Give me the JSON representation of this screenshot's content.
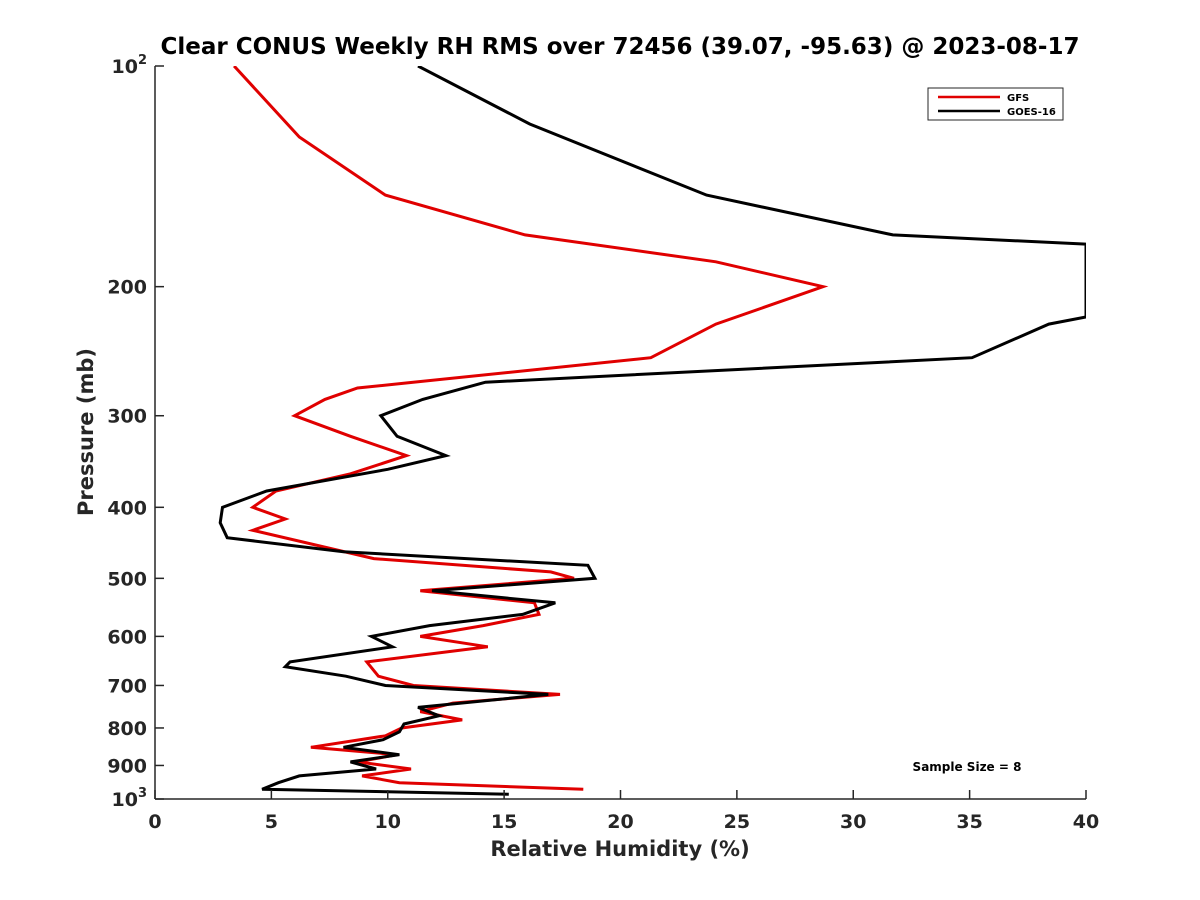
{
  "chart_data": {
    "type": "line",
    "title": "Clear CONUS Weekly RH RMS over 72456 (39.07, -95.63) @ 2023-08-17",
    "xlabel": "Relative Humidity (%)",
    "ylabel": "Pressure (mb)",
    "xlim": [
      0,
      40
    ],
    "ylim": [
      100,
      1000
    ],
    "yscale": "log",
    "y_reversed": true,
    "x_ticks": [
      0,
      5,
      10,
      15,
      20,
      25,
      30,
      35,
      40
    ],
    "x_tick_labels": [
      "0",
      "5",
      "10",
      "15",
      "20",
      "25",
      "30",
      "35",
      "40"
    ],
    "y_ticks": [
      100,
      200,
      300,
      400,
      500,
      600,
      700,
      800,
      900,
      1000
    ],
    "y_tick_labels": [
      {
        "base": "10",
        "exp": "2"
      },
      {
        "base": "200",
        "exp": ""
      },
      {
        "base": "300",
        "exp": ""
      },
      {
        "base": "400",
        "exp": ""
      },
      {
        "base": "500",
        "exp": ""
      },
      {
        "base": "600",
        "exp": ""
      },
      {
        "base": "700",
        "exp": ""
      },
      {
        "base": "800",
        "exp": ""
      },
      {
        "base": "900",
        "exp": ""
      },
      {
        "base": "10",
        "exp": "3"
      }
    ],
    "legend_position": "top-right",
    "annotation": "Sample Size = 8",
    "series": [
      {
        "name": "GFS",
        "color": "#e00000",
        "points": [
          [
            3.4,
            100
          ],
          [
            6.2,
            125
          ],
          [
            9.9,
            150
          ],
          [
            15.9,
            170
          ],
          [
            24.1,
            185
          ],
          [
            28.7,
            200
          ],
          [
            24.1,
            225
          ],
          [
            21.3,
            250
          ],
          [
            8.7,
            275
          ],
          [
            7.3,
            285
          ],
          [
            6.0,
            300
          ],
          [
            8.4,
            320
          ],
          [
            10.8,
            340
          ],
          [
            8.4,
            360
          ],
          [
            5.2,
            380
          ],
          [
            4.2,
            400
          ],
          [
            5.6,
            415
          ],
          [
            4.2,
            430
          ],
          [
            9.4,
            470
          ],
          [
            17.0,
            490
          ],
          [
            18.0,
            500
          ],
          [
            11.4,
            520
          ],
          [
            16.3,
            540
          ],
          [
            16.5,
            560
          ],
          [
            14.1,
            580
          ],
          [
            11.4,
            600
          ],
          [
            14.3,
            620
          ],
          [
            9.1,
            650
          ],
          [
            9.6,
            680
          ],
          [
            11.1,
            700
          ],
          [
            17.4,
            720
          ],
          [
            12.8,
            740
          ],
          [
            11.4,
            760
          ],
          [
            13.2,
            780
          ],
          [
            10.6,
            800
          ],
          [
            9.9,
            820
          ],
          [
            6.7,
            850
          ],
          [
            10.4,
            870
          ],
          [
            8.7,
            890
          ],
          [
            11.0,
            910
          ],
          [
            8.9,
            930
          ],
          [
            10.5,
            950
          ],
          [
            18.4,
            970
          ]
        ]
      },
      {
        "name": "GOES-16",
        "color": "#000000",
        "points": [
          [
            11.3,
            100
          ],
          [
            16.1,
            120
          ],
          [
            23.7,
            150
          ],
          [
            31.7,
            170
          ],
          [
            40.0,
            175
          ],
          [
            40.0,
            220
          ],
          [
            38.4,
            225
          ],
          [
            35.1,
            250
          ],
          [
            14.2,
            270
          ],
          [
            11.5,
            285
          ],
          [
            9.7,
            300
          ],
          [
            10.4,
            320
          ],
          [
            12.5,
            340
          ],
          [
            10.0,
            355
          ],
          [
            4.8,
            380
          ],
          [
            2.9,
            400
          ],
          [
            2.8,
            420
          ],
          [
            3.1,
            440
          ],
          [
            8.1,
            460
          ],
          [
            18.6,
            480
          ],
          [
            18.9,
            500
          ],
          [
            11.9,
            520
          ],
          [
            17.2,
            540
          ],
          [
            15.8,
            560
          ],
          [
            11.8,
            580
          ],
          [
            9.3,
            600
          ],
          [
            10.2,
            620
          ],
          [
            5.8,
            650
          ],
          [
            5.6,
            660
          ],
          [
            8.2,
            680
          ],
          [
            9.9,
            700
          ],
          [
            16.9,
            720
          ],
          [
            11.3,
            750
          ],
          [
            12.2,
            770
          ],
          [
            10.7,
            790
          ],
          [
            10.5,
            810
          ],
          [
            9.8,
            830
          ],
          [
            8.1,
            850
          ],
          [
            10.5,
            870
          ],
          [
            8.4,
            890
          ],
          [
            9.5,
            910
          ],
          [
            6.2,
            930
          ],
          [
            5.3,
            950
          ],
          [
            4.6,
            970
          ],
          [
            15.2,
            985
          ]
        ]
      }
    ]
  }
}
